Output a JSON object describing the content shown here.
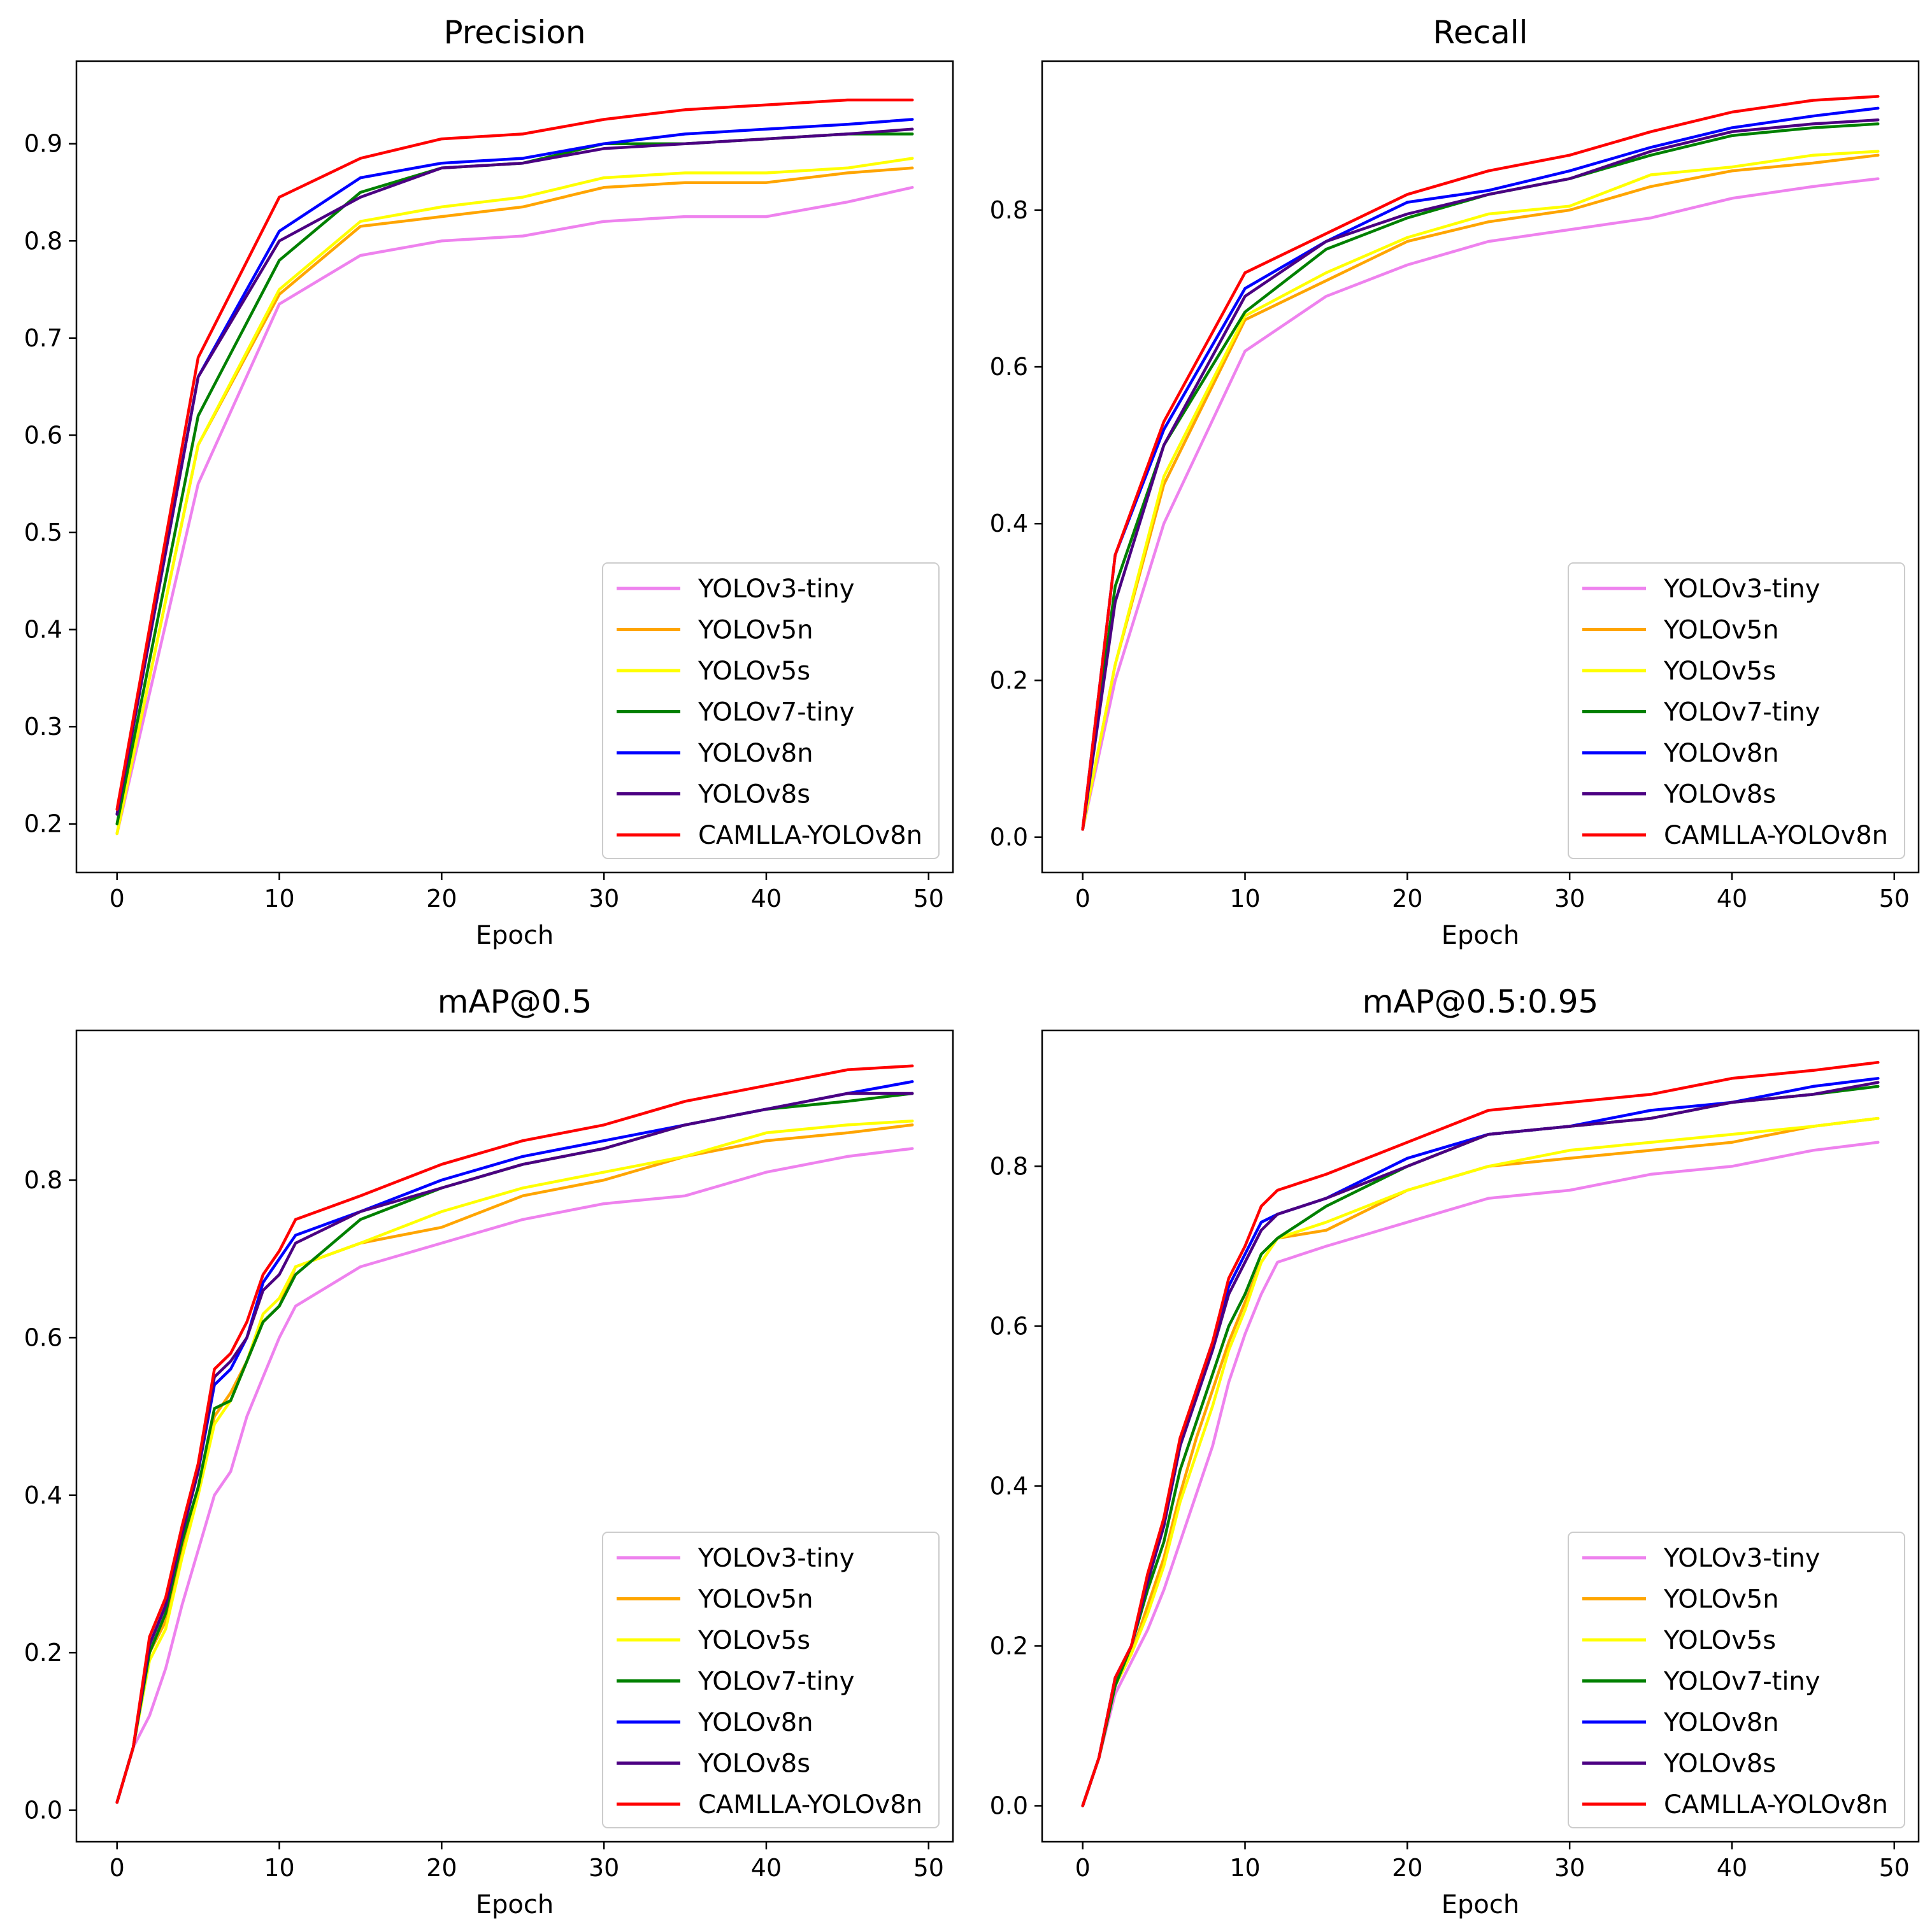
{
  "chart_data": [
    {
      "type": "line",
      "title": "Precision",
      "xlabel": "Epoch",
      "ylabel": "",
      "xlim": [
        -2.5,
        51.5
      ],
      "ylim": [
        0.15,
        0.985
      ],
      "xticks": [
        "0",
        "10",
        "20",
        "30",
        "40",
        "50"
      ],
      "yticks": [
        "0.2",
        "0.3",
        "0.4",
        "0.5",
        "0.6",
        "0.7",
        "0.8",
        "0.9"
      ],
      "legend_position": "lower right",
      "x": [
        0,
        5,
        10,
        15,
        20,
        25,
        30,
        35,
        40,
        45,
        49
      ],
      "series": [
        {
          "name": "YOLOv3-tiny",
          "color": "#ee82ee",
          "values": [
            0.19,
            0.55,
            0.735,
            0.785,
            0.8,
            0.805,
            0.82,
            0.825,
            0.825,
            0.84,
            0.855
          ]
        },
        {
          "name": "YOLOv5n",
          "color": "#ffa500",
          "values": [
            0.19,
            0.59,
            0.745,
            0.815,
            0.825,
            0.835,
            0.855,
            0.86,
            0.86,
            0.87,
            0.875
          ]
        },
        {
          "name": "YOLOv5s",
          "color": "#ffff00",
          "values": [
            0.19,
            0.59,
            0.75,
            0.82,
            0.835,
            0.845,
            0.865,
            0.87,
            0.87,
            0.875,
            0.885
          ]
        },
        {
          "name": "YOLOv7-tiny",
          "color": "#008000",
          "values": [
            0.2,
            0.62,
            0.78,
            0.85,
            0.875,
            0.88,
            0.9,
            0.9,
            0.905,
            0.91,
            0.91
          ]
        },
        {
          "name": "YOLOv8n",
          "color": "#0000ff",
          "values": [
            0.21,
            0.66,
            0.81,
            0.865,
            0.88,
            0.885,
            0.9,
            0.91,
            0.915,
            0.92,
            0.925
          ]
        },
        {
          "name": "YOLOv8s",
          "color": "#4b0082",
          "values": [
            0.21,
            0.66,
            0.8,
            0.845,
            0.875,
            0.88,
            0.895,
            0.9,
            0.905,
            0.91,
            0.915
          ]
        },
        {
          "name": "CAMLLA-YOLOv8n",
          "color": "#ff0000",
          "values": [
            0.215,
            0.68,
            0.845,
            0.885,
            0.905,
            0.91,
            0.925,
            0.935,
            0.94,
            0.945,
            0.945
          ]
        }
      ]
    },
    {
      "type": "line",
      "title": "Recall",
      "xlabel": "Epoch",
      "ylabel": "",
      "xlim": [
        -2.5,
        51.5
      ],
      "ylim": [
        -0.045,
        0.99
      ],
      "xticks": [
        "0",
        "10",
        "20",
        "30",
        "40",
        "50"
      ],
      "yticks": [
        "0.0",
        "0.2",
        "0.4",
        "0.6",
        "0.8"
      ],
      "legend_position": "lower right",
      "x": [
        0,
        2,
        5,
        10,
        15,
        20,
        25,
        30,
        35,
        40,
        45,
        49
      ],
      "series": [
        {
          "name": "YOLOv3-tiny",
          "color": "#ee82ee",
          "values": [
            0.01,
            0.2,
            0.4,
            0.62,
            0.69,
            0.73,
            0.76,
            0.775,
            0.79,
            0.815,
            0.83,
            0.84
          ]
        },
        {
          "name": "YOLOv5n",
          "color": "#ffa500",
          "values": [
            0.01,
            0.22,
            0.45,
            0.66,
            0.71,
            0.76,
            0.785,
            0.8,
            0.83,
            0.85,
            0.86,
            0.87
          ]
        },
        {
          "name": "YOLOv5s",
          "color": "#ffff00",
          "values": [
            0.01,
            0.22,
            0.46,
            0.665,
            0.72,
            0.765,
            0.795,
            0.805,
            0.845,
            0.855,
            0.87,
            0.875
          ]
        },
        {
          "name": "YOLOv7-tiny",
          "color": "#008000",
          "values": [
            0.01,
            0.32,
            0.5,
            0.67,
            0.75,
            0.79,
            0.82,
            0.84,
            0.87,
            0.895,
            0.905,
            0.91
          ]
        },
        {
          "name": "YOLOv8n",
          "color": "#0000ff",
          "values": [
            0.01,
            0.36,
            0.52,
            0.7,
            0.76,
            0.81,
            0.825,
            0.85,
            0.88,
            0.905,
            0.92,
            0.93
          ]
        },
        {
          "name": "YOLOv8s",
          "color": "#4b0082",
          "values": [
            0.01,
            0.3,
            0.5,
            0.69,
            0.76,
            0.795,
            0.82,
            0.84,
            0.875,
            0.9,
            0.91,
            0.915
          ]
        },
        {
          "name": "CAMLLA-YOLOv8n",
          "color": "#ff0000",
          "values": [
            0.01,
            0.36,
            0.53,
            0.72,
            0.77,
            0.82,
            0.85,
            0.87,
            0.9,
            0.925,
            0.94,
            0.945
          ]
        }
      ]
    },
    {
      "type": "line",
      "title": "mAP@0.5",
      "xlabel": "Epoch",
      "ylabel": "",
      "xlim": [
        -2.5,
        51.5
      ],
      "ylim": [
        -0.04,
        0.99
      ],
      "xticks": [
        "0",
        "10",
        "20",
        "30",
        "40",
        "50"
      ],
      "yticks": [
        "0.0",
        "0.2",
        "0.4",
        "0.6",
        "0.8"
      ],
      "legend_position": "lower right",
      "x": [
        0,
        1,
        2,
        3,
        4,
        5,
        6,
        7,
        8,
        9,
        10,
        11,
        15,
        20,
        25,
        30,
        35,
        40,
        45,
        49
      ],
      "series": [
        {
          "name": "YOLOv3-tiny",
          "color": "#ee82ee",
          "values": [
            0.01,
            0.08,
            0.12,
            0.18,
            0.26,
            0.33,
            0.4,
            0.43,
            0.5,
            0.55,
            0.6,
            0.64,
            0.69,
            0.72,
            0.75,
            0.77,
            0.78,
            0.81,
            0.83,
            0.84
          ]
        },
        {
          "name": "YOLOv5n",
          "color": "#ffa500",
          "values": [
            0.01,
            0.08,
            0.2,
            0.24,
            0.33,
            0.41,
            0.5,
            0.53,
            0.57,
            0.62,
            0.64,
            0.69,
            0.72,
            0.74,
            0.78,
            0.8,
            0.83,
            0.85,
            0.86,
            0.87
          ]
        },
        {
          "name": "YOLOv5s",
          "color": "#ffff00",
          "values": [
            0.01,
            0.08,
            0.19,
            0.23,
            0.32,
            0.4,
            0.49,
            0.52,
            0.57,
            0.63,
            0.65,
            0.69,
            0.72,
            0.76,
            0.79,
            0.81,
            0.83,
            0.86,
            0.87,
            0.875
          ]
        },
        {
          "name": "YOLOv7-tiny",
          "color": "#008000",
          "values": [
            0.01,
            0.08,
            0.2,
            0.25,
            0.34,
            0.41,
            0.51,
            0.52,
            0.57,
            0.62,
            0.64,
            0.68,
            0.75,
            0.79,
            0.82,
            0.84,
            0.87,
            0.89,
            0.9,
            0.91
          ]
        },
        {
          "name": "YOLOv8n",
          "color": "#0000ff",
          "values": [
            0.01,
            0.08,
            0.21,
            0.26,
            0.35,
            0.43,
            0.54,
            0.56,
            0.6,
            0.67,
            0.7,
            0.73,
            0.76,
            0.8,
            0.83,
            0.85,
            0.87,
            0.89,
            0.91,
            0.925
          ]
        },
        {
          "name": "YOLOv8s",
          "color": "#4b0082",
          "values": [
            0.01,
            0.08,
            0.21,
            0.26,
            0.35,
            0.43,
            0.55,
            0.57,
            0.6,
            0.66,
            0.68,
            0.72,
            0.76,
            0.79,
            0.82,
            0.84,
            0.87,
            0.89,
            0.91,
            0.91
          ]
        },
        {
          "name": "CAMLLA-YOLOv8n",
          "color": "#ff0000",
          "values": [
            0.01,
            0.08,
            0.22,
            0.27,
            0.36,
            0.44,
            0.56,
            0.58,
            0.62,
            0.68,
            0.71,
            0.75,
            0.78,
            0.82,
            0.85,
            0.87,
            0.9,
            0.92,
            0.94,
            0.945
          ]
        }
      ]
    },
    {
      "type": "line",
      "title": "mAP@0.5:0.95",
      "xlabel": "Epoch",
      "ylabel": "",
      "xlim": [
        -2.5,
        51.5
      ],
      "ylim": [
        -0.045,
        0.97
      ],
      "xticks": [
        "0",
        "10",
        "20",
        "30",
        "40",
        "50"
      ],
      "yticks": [
        "0.0",
        "0.2",
        "0.4",
        "0.6",
        "0.8"
      ],
      "legend_position": "lower right",
      "x": [
        0,
        1,
        2,
        3,
        4,
        5,
        6,
        7,
        8,
        9,
        10,
        11,
        12,
        15,
        20,
        25,
        30,
        35,
        40,
        45,
        49
      ],
      "series": [
        {
          "name": "YOLOv3-tiny",
          "color": "#ee82ee",
          "values": [
            0.0,
            0.06,
            0.14,
            0.18,
            0.22,
            0.27,
            0.33,
            0.39,
            0.45,
            0.53,
            0.59,
            0.64,
            0.68,
            0.7,
            0.73,
            0.76,
            0.77,
            0.79,
            0.8,
            0.82,
            0.83
          ]
        },
        {
          "name": "YOLOv5n",
          "color": "#ffa500",
          "values": [
            0.0,
            0.06,
            0.15,
            0.19,
            0.25,
            0.31,
            0.39,
            0.46,
            0.52,
            0.58,
            0.63,
            0.68,
            0.71,
            0.72,
            0.77,
            0.8,
            0.81,
            0.82,
            0.83,
            0.85,
            0.86
          ]
        },
        {
          "name": "YOLOv5s",
          "color": "#ffff00",
          "values": [
            0.0,
            0.06,
            0.15,
            0.19,
            0.24,
            0.3,
            0.38,
            0.44,
            0.5,
            0.57,
            0.62,
            0.68,
            0.71,
            0.73,
            0.77,
            0.8,
            0.82,
            0.83,
            0.84,
            0.85,
            0.86
          ]
        },
        {
          "name": "YOLOv7-tiny",
          "color": "#008000",
          "values": [
            0.0,
            0.06,
            0.15,
            0.2,
            0.27,
            0.33,
            0.42,
            0.48,
            0.54,
            0.6,
            0.64,
            0.69,
            0.71,
            0.75,
            0.8,
            0.84,
            0.85,
            0.86,
            0.88,
            0.89,
            0.9
          ]
        },
        {
          "name": "YOLOv8n",
          "color": "#0000ff",
          "values": [
            0.0,
            0.06,
            0.16,
            0.2,
            0.28,
            0.35,
            0.45,
            0.52,
            0.58,
            0.65,
            0.69,
            0.73,
            0.74,
            0.76,
            0.81,
            0.84,
            0.85,
            0.87,
            0.88,
            0.9,
            0.91
          ]
        },
        {
          "name": "YOLOv8s",
          "color": "#4b0082",
          "values": [
            0.0,
            0.06,
            0.16,
            0.2,
            0.28,
            0.35,
            0.45,
            0.51,
            0.57,
            0.64,
            0.68,
            0.72,
            0.74,
            0.76,
            0.8,
            0.84,
            0.85,
            0.86,
            0.88,
            0.89,
            0.905
          ]
        },
        {
          "name": "CAMLLA-YOLOv8n",
          "color": "#ff0000",
          "values": [
            0.0,
            0.06,
            0.16,
            0.2,
            0.29,
            0.36,
            0.46,
            0.52,
            0.58,
            0.66,
            0.7,
            0.75,
            0.77,
            0.79,
            0.83,
            0.87,
            0.88,
            0.89,
            0.91,
            0.92,
            0.93
          ]
        }
      ]
    }
  ]
}
